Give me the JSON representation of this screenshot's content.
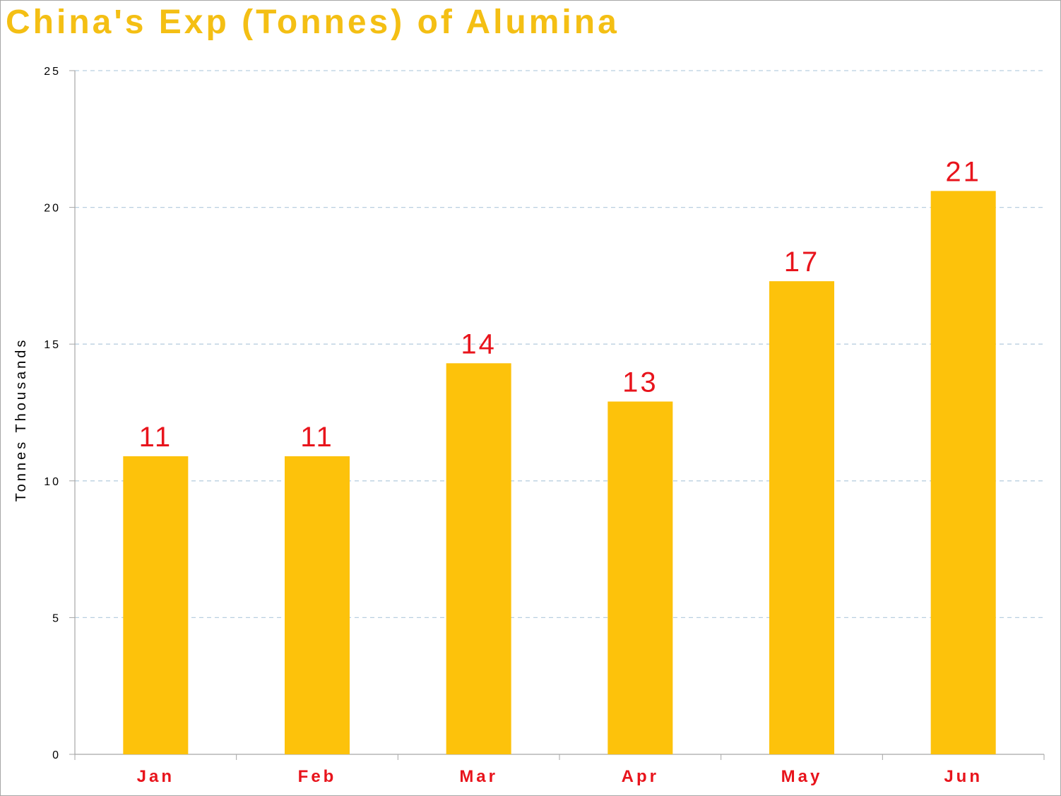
{
  "chart_data": {
    "type": "bar",
    "title": "China's Exp (Tonnes) of Alumina",
    "xlabel": "",
    "ylabel": "Tonnes Thousands",
    "categories": [
      "Jan",
      "Feb",
      "Mar",
      "Apr",
      "May",
      "Jun"
    ],
    "values": [
      10.9,
      10.9,
      14.3,
      12.9,
      17.3,
      20.6
    ],
    "data_labels": [
      "11",
      "11",
      "14",
      "13",
      "17",
      "21"
    ],
    "ylim": [
      0,
      25
    ],
    "yticks": [
      0,
      5,
      10,
      15,
      20,
      25
    ],
    "ytick_labels": [
      "0",
      "5",
      "10",
      "15",
      "20",
      "25"
    ],
    "grid": true,
    "legend": "none",
    "colors": {
      "bar": "#fdc20b",
      "title": "#f4bf14",
      "data_label": "#e8141c",
      "category_label": "#e8141c",
      "grid": "#b9cfe0",
      "axis": "#a6a6a6"
    }
  }
}
